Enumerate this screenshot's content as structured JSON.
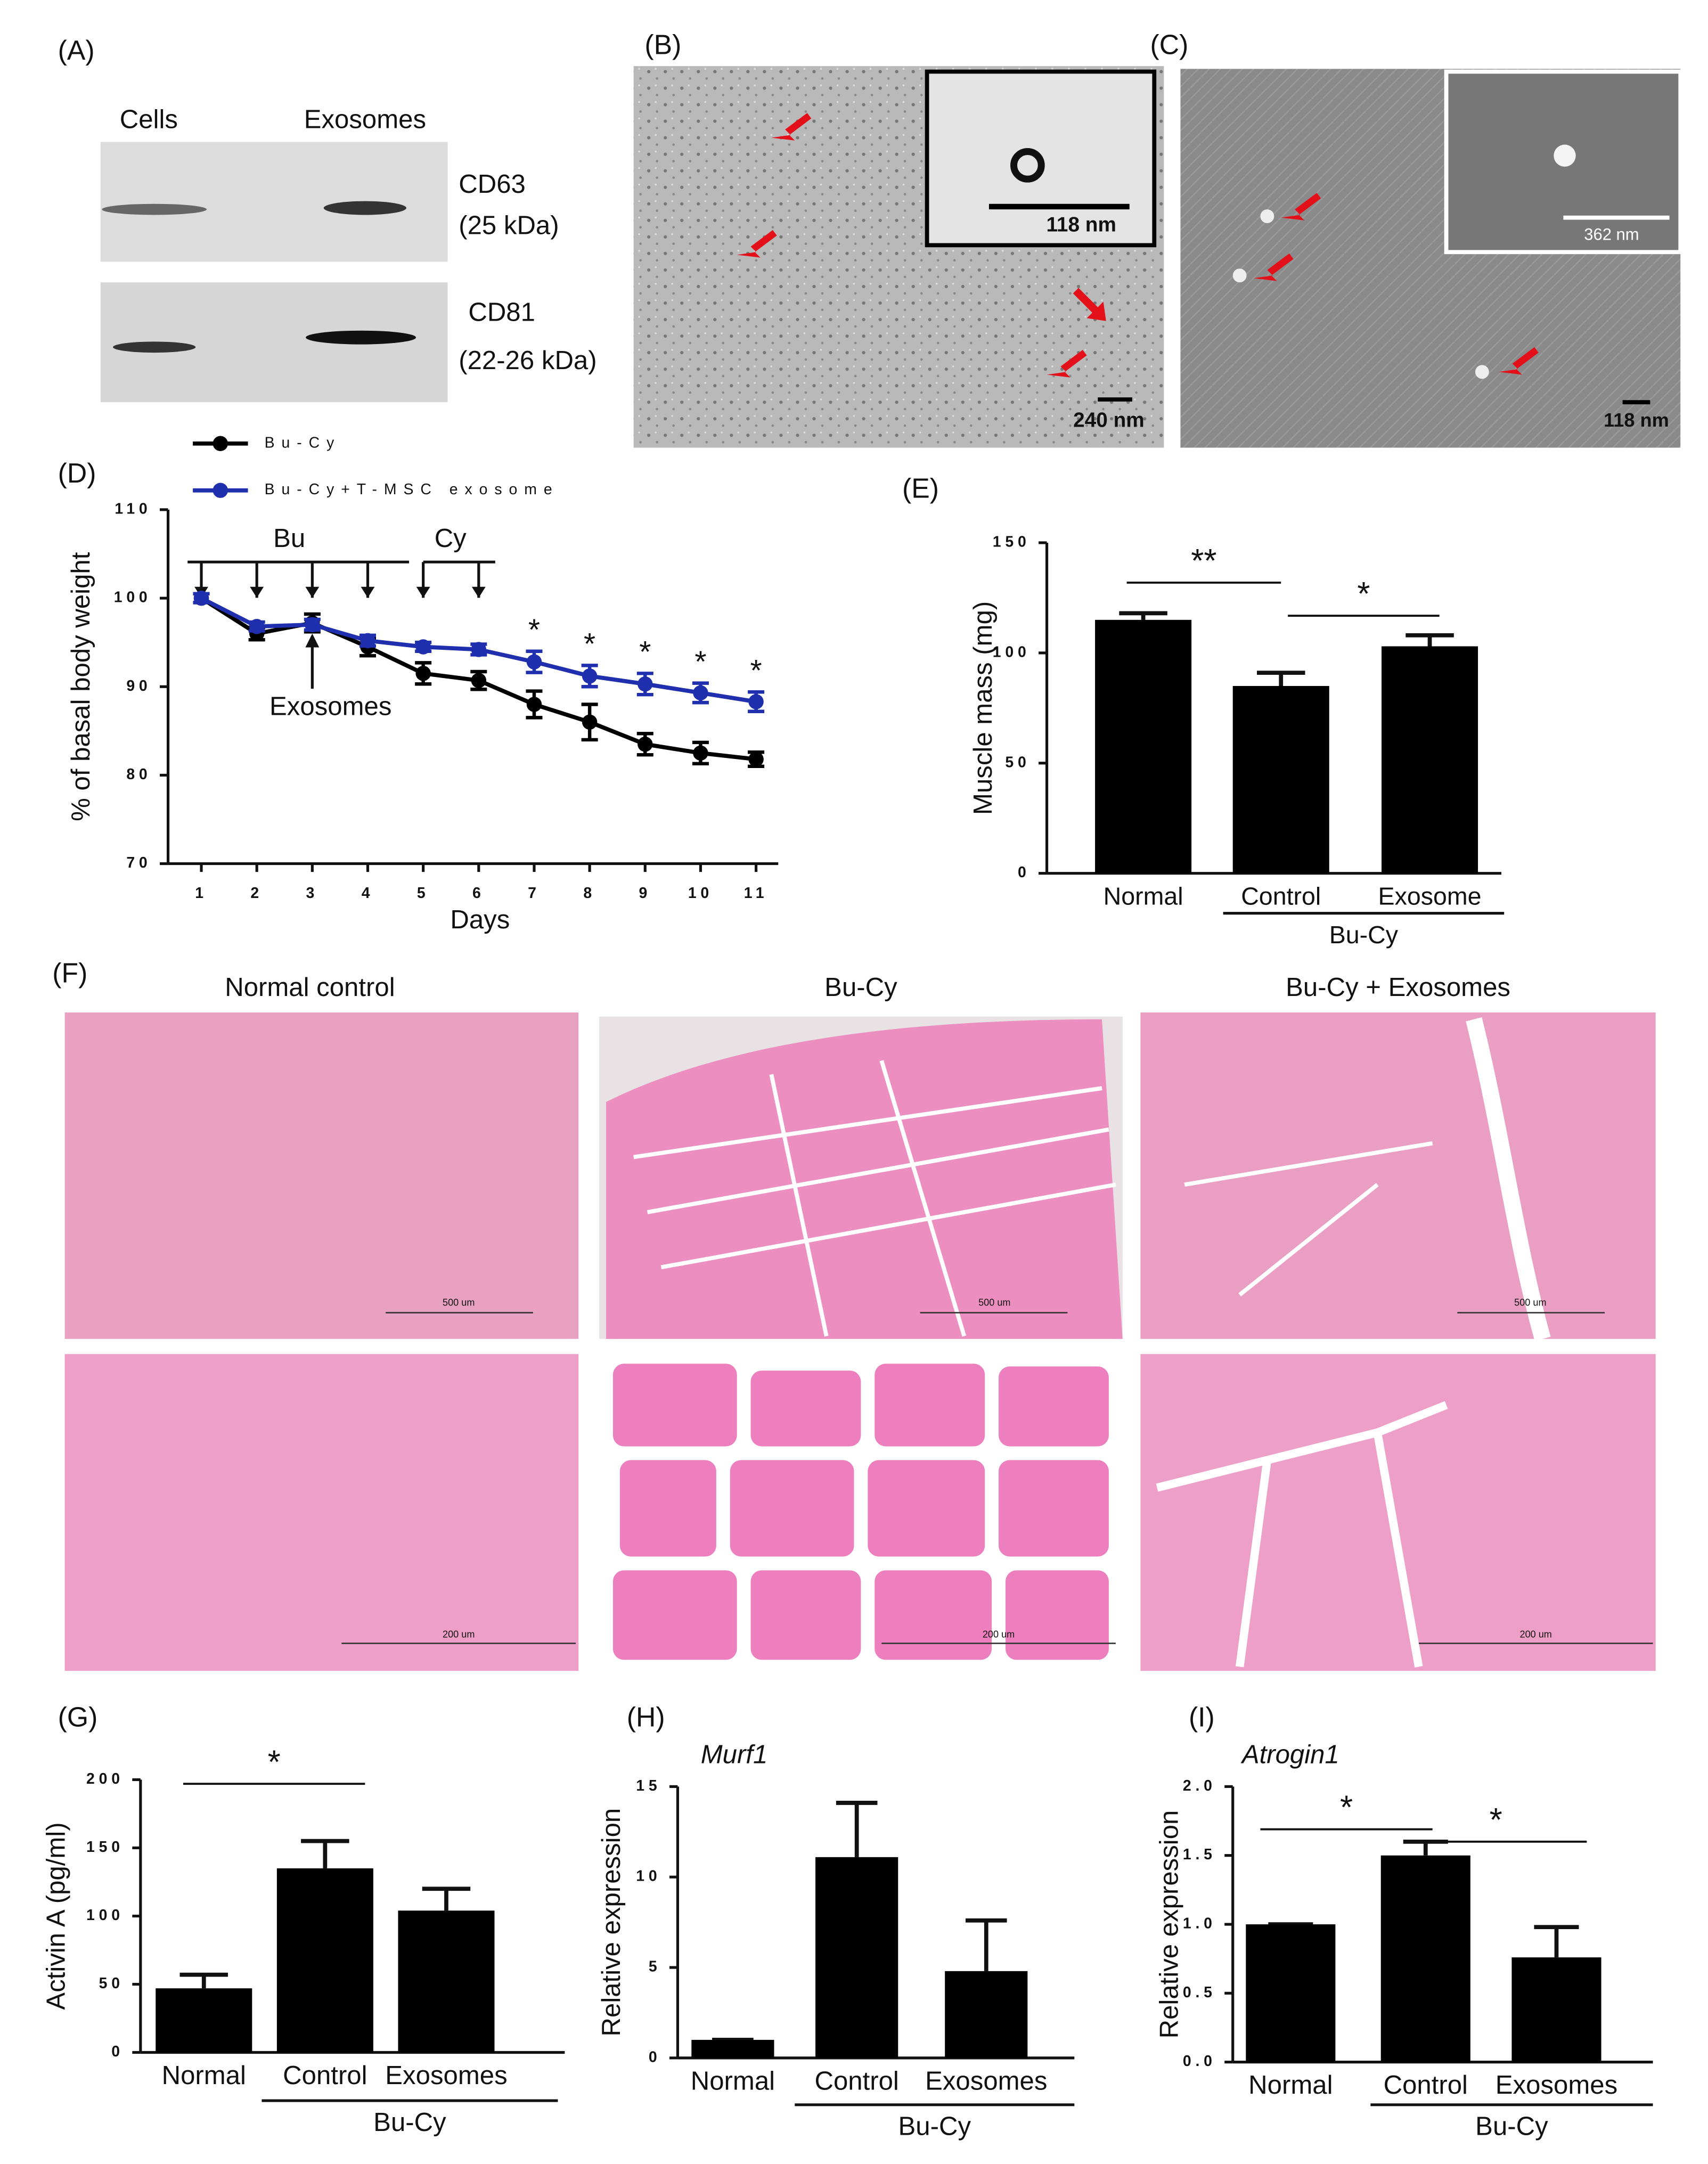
{
  "panel_labels": [
    "(A)",
    "(B)",
    "(C)",
    "(D)",
    "(E)",
    "(F)",
    "(G)",
    "(H)",
    "(I)"
  ],
  "blot": {
    "lanes": [
      "Cells",
      "Exosomes"
    ],
    "bands": [
      {
        "name": "CD63",
        "size": "(25 kDa)"
      },
      {
        "name": "CD81",
        "size": "(22-26 kDa)"
      }
    ]
  },
  "tem": {
    "inset_scale": "118 nm",
    "scale": "240 nm"
  },
  "sem": {
    "inset_scale": "362 nm",
    "scale": "118 nm"
  },
  "histology": {
    "columns": [
      "Normal control",
      "Bu-Cy",
      "Bu-Cy + Exosomes"
    ],
    "scales_top": [
      "500 um",
      "500 um",
      "500 um"
    ],
    "scales_bottom": [
      "200 um",
      "200 um",
      "200 um"
    ]
  },
  "chart_data": [
    {
      "type": "line",
      "x_label": "Days",
      "y_label": "% of basal body weight",
      "x": [
        1,
        2,
        3,
        4,
        5,
        6,
        7,
        8,
        9,
        10,
        11
      ],
      "xlim": [
        0.4,
        11.4
      ],
      "xticks": [
        1,
        2,
        3,
        4,
        5,
        6,
        7,
        8,
        9,
        10,
        11
      ],
      "ylim": [
        70,
        110
      ],
      "yticks": [
        70,
        80,
        90,
        100,
        110
      ],
      "series": [
        {
          "name": "Bu-Cy",
          "color": "#000000",
          "values": [
            100,
            96,
            97.2,
            94.5,
            91.5,
            90.7,
            88,
            86,
            83.5,
            82.5,
            81.8
          ],
          "errors": [
            0.5,
            0.7,
            1,
            1,
            1.2,
            1,
            1.5,
            2,
            1.2,
            1.2,
            0.8
          ]
        },
        {
          "name": "Bu-Cy+T-MSC exosome",
          "color": "#1f2fae",
          "values": [
            100,
            96.8,
            97,
            95.2,
            94.5,
            94.2,
            92.8,
            91.2,
            90.3,
            89.3,
            88.3
          ],
          "errors": [
            0.5,
            0.5,
            0.6,
            0.6,
            0.5,
            0.6,
            1.2,
            1.2,
            1.2,
            1.1,
            1.1
          ]
        }
      ],
      "annotations": [
        "Bu",
        "Cy",
        "Exosomes",
        "*",
        "*",
        "*",
        "*",
        "*"
      ]
    },
    {
      "type": "bar",
      "y_label": "Muscle mass (mg)",
      "categories": [
        "Normal",
        "Control",
        "Exosome"
      ],
      "values": [
        115,
        85,
        103
      ],
      "errors": [
        3,
        6,
        5
      ],
      "color": "#000000",
      "ylim": [
        0,
        150
      ],
      "yticks": [
        0,
        50,
        100,
        150
      ],
      "group_label": "Bu-Cy",
      "annotations": [
        "**",
        "*"
      ]
    },
    {
      "type": "bar",
      "y_label": "Activin A (pg/ml)",
      "categories": [
        "Normal",
        "Control",
        "Exosomes"
      ],
      "values": [
        47,
        135,
        104
      ],
      "errors": [
        10,
        20,
        16
      ],
      "color": "#000000",
      "ylim": [
        0,
        200
      ],
      "yticks": [
        0,
        50,
        100,
        150,
        200
      ],
      "group_label": "Bu-Cy",
      "annotations": [
        "*"
      ]
    },
    {
      "type": "bar",
      "title": "Murf1",
      "y_label": "Relative expression",
      "categories": [
        "Normal",
        "Control",
        "Exosomes"
      ],
      "values": [
        1,
        11.1,
        4.8
      ],
      "errors": [
        0,
        3,
        2.8
      ],
      "color": "#000000",
      "ylim": [
        0,
        15
      ],
      "yticks": [
        0,
        5,
        10,
        15
      ],
      "group_label": "Bu-Cy",
      "annotations": []
    },
    {
      "type": "bar",
      "title": "Atrogin1",
      "y_label": "Relative expression",
      "categories": [
        "Normal",
        "Control",
        "Exosomes"
      ],
      "values": [
        1,
        1.5,
        0.76
      ],
      "errors": [
        0,
        0.1,
        0.22
      ],
      "color": "#000000",
      "ylim": [
        0,
        2
      ],
      "yticks": [
        {
          "value": 0,
          "label": "0.0"
        },
        0.5,
        {
          "value": 1,
          "label": "1.0"
        },
        1.5,
        {
          "value": 2,
          "label": "2.0"
        }
      ],
      "group_label": "Bu-Cy",
      "annotations": [
        "*",
        "*"
      ]
    }
  ]
}
